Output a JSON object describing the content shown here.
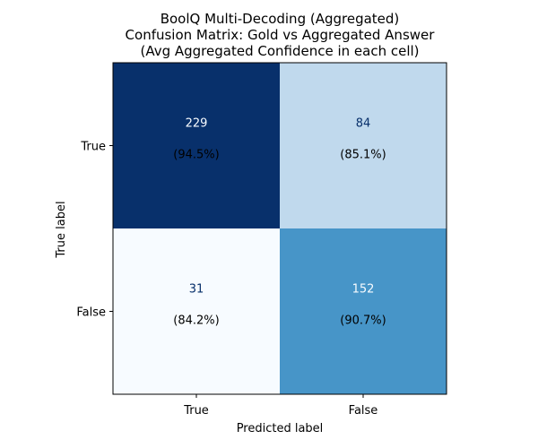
{
  "chart_data": {
    "type": "heatmap",
    "title": [
      "BoolQ Multi-Decoding (Aggregated)",
      "Confusion Matrix: Gold vs Aggregated Answer",
      "(Avg Aggregated Confidence in each cell)"
    ],
    "xlabel": "Predicted label",
    "ylabel": "True label",
    "x_categories": [
      "True",
      "False"
    ],
    "y_categories": [
      "True",
      "False"
    ],
    "cells": [
      [
        {
          "count": 229,
          "count_label": "229",
          "confidence_label": "(94.5%)"
        },
        {
          "count": 84,
          "count_label": "84",
          "confidence_label": "(85.1%)"
        }
      ],
      [
        {
          "count": 31,
          "count_label": "31",
          "confidence_label": "(84.2%)"
        },
        {
          "count": 152,
          "count_label": "152",
          "confidence_label": "(90.7%)"
        }
      ]
    ],
    "colormap": "Blues",
    "colorbar": false,
    "grid": false
  }
}
